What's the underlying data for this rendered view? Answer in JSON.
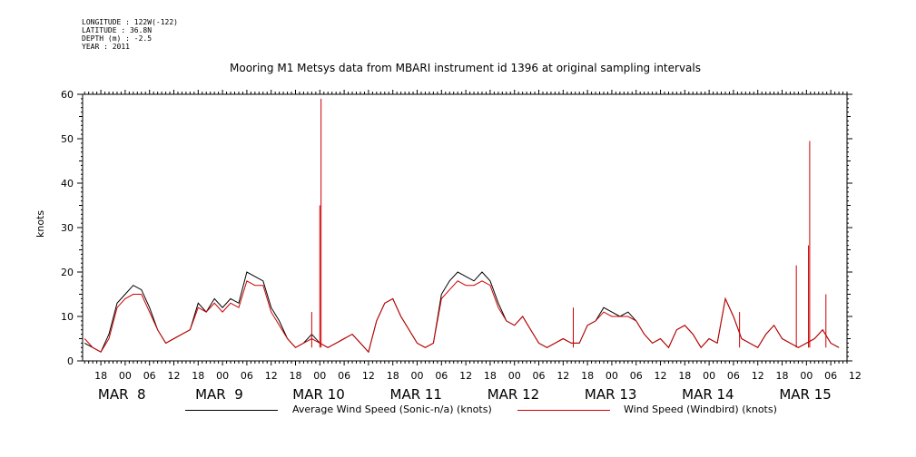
{
  "meta": {
    "longitude": "LONGITUDE : 122W(-122)",
    "latitude": "LATITUDE : 36.8N",
    "depth": "DEPTH (m) : -2.5",
    "year": "YEAR : 2011"
  },
  "colors": {
    "series1": "#000000",
    "series2": "#cc0000"
  },
  "chart_data": {
    "type": "line",
    "title": "Mooring M1 Metsys data from MBARI instrument id 1396 at original sampling intervals",
    "ylabel": "knots",
    "xlabel": "",
    "ylim": [
      0,
      60
    ],
    "yticks": [
      0,
      10,
      20,
      30,
      40,
      50,
      60
    ],
    "x_unit": "hours since MAR 8 00:00 (2011)",
    "xlim": [
      -10.5,
      178
    ],
    "hour_ticks": [
      "18",
      "00",
      "06",
      "12",
      "18",
      "00",
      "06",
      "12",
      "18",
      "00",
      "06",
      "12",
      "18",
      "00",
      "06",
      "12",
      "18",
      "00",
      "06",
      "12",
      "18",
      "00",
      "06",
      "12",
      "18",
      "00",
      "06",
      "12",
      "18",
      "00",
      "06",
      "12"
    ],
    "day_labels": [
      "MAR  8",
      "MAR  9",
      "MAR 10",
      "MAR 11",
      "MAR 12",
      "MAR 13",
      "MAR 14",
      "MAR 15"
    ],
    "grid": false,
    "legend_position": "bottom",
    "series": [
      {
        "name": "Average Wind Speed (Sonic-n/a) (knots)",
        "x": [
          -10,
          -8,
          -6,
          -4,
          -2,
          0,
          2,
          4,
          6,
          8,
          10,
          12,
          14,
          16,
          18,
          20,
          22,
          24,
          26,
          28,
          30,
          32,
          34,
          36,
          38,
          40,
          42,
          44,
          46,
          48,
          50,
          52,
          54,
          56,
          58,
          60,
          62,
          64,
          66,
          68,
          70,
          72,
          74,
          76,
          78,
          80,
          82,
          84,
          86,
          88,
          90,
          92,
          94,
          96,
          98,
          100,
          102,
          104,
          106,
          108,
          110,
          112,
          114,
          116,
          118,
          120,
          122,
          124,
          126,
          128,
          130,
          132,
          134,
          136,
          138,
          140,
          142,
          144,
          146,
          148,
          150,
          152,
          154,
          156,
          158,
          160,
          162,
          164,
          166,
          168,
          170,
          172,
          174,
          176
        ],
        "values": [
          4,
          3,
          2,
          6,
          13,
          15,
          17,
          16,
          12,
          7,
          4,
          5,
          6,
          7,
          13,
          11,
          14,
          12,
          14,
          13,
          20,
          19,
          18,
          12,
          9,
          5,
          3,
          4,
          6,
          4,
          3,
          4,
          5,
          6,
          4,
          2,
          9,
          13,
          14,
          10,
          7,
          4,
          3,
          4,
          15,
          18,
          20,
          19,
          18,
          20,
          18,
          13,
          9,
          8,
          10,
          7,
          4,
          3,
          4,
          5,
          4,
          4,
          8,
          9,
          12,
          11,
          10,
          11,
          9,
          6,
          4,
          5,
          3,
          7,
          8,
          6,
          3,
          5,
          4,
          14,
          10,
          5,
          4,
          3,
          6,
          8,
          5,
          4,
          3,
          4,
          5,
          7,
          4,
          3
        ]
      },
      {
        "name": "Wind Speed (Windbird) (knots)",
        "x": [
          -10,
          -8,
          -6,
          -4,
          -2,
          0,
          2,
          4,
          6,
          8,
          10,
          12,
          14,
          16,
          18,
          20,
          22,
          24,
          26,
          28,
          30,
          32,
          34,
          36,
          38,
          40,
          42,
          44,
          46,
          48,
          50,
          52,
          54,
          56,
          58,
          60,
          62,
          64,
          66,
          68,
          70,
          72,
          74,
          76,
          78,
          80,
          82,
          84,
          86,
          88,
          90,
          92,
          94,
          96,
          98,
          100,
          102,
          104,
          106,
          108,
          110,
          112,
          114,
          116,
          118,
          120,
          122,
          124,
          126,
          128,
          130,
          132,
          134,
          136,
          138,
          140,
          142,
          144,
          146,
          148,
          150,
          152,
          154,
          156,
          158,
          160,
          162,
          164,
          166,
          168,
          170,
          172,
          174,
          176
        ],
        "values": [
          5,
          3,
          2,
          5,
          12,
          14,
          15,
          15,
          11,
          7,
          4,
          5,
          6,
          7,
          12,
          11,
          13,
          11,
          13,
          12,
          18,
          17,
          17,
          11,
          8,
          5,
          3,
          4,
          5,
          4,
          3,
          4,
          5,
          6,
          4,
          2,
          9,
          13,
          14,
          10,
          7,
          4,
          3,
          4,
          14,
          16,
          18,
          17,
          17,
          18,
          17,
          12,
          9,
          8,
          10,
          7,
          4,
          3,
          4,
          5,
          4,
          4,
          8,
          9,
          11,
          10,
          10,
          10,
          9,
          6,
          4,
          5,
          3,
          7,
          8,
          6,
          3,
          5,
          4,
          14,
          10,
          5,
          4,
          3,
          6,
          8,
          5,
          4,
          3,
          4,
          5,
          7,
          4,
          3
        ],
        "spikes": [
          {
            "x": 48.3,
            "y": 59
          },
          {
            "x": 48.0,
            "y": 35
          },
          {
            "x": 168.8,
            "y": 49.5
          },
          {
            "x": 168.5,
            "y": 26
          },
          {
            "x": 165.5,
            "y": 21.5
          },
          {
            "x": 172.8,
            "y": 15
          },
          {
            "x": 46.0,
            "y": 11
          },
          {
            "x": 151.5,
            "y": 11
          },
          {
            "x": 110.5,
            "y": 12
          }
        ]
      }
    ]
  }
}
